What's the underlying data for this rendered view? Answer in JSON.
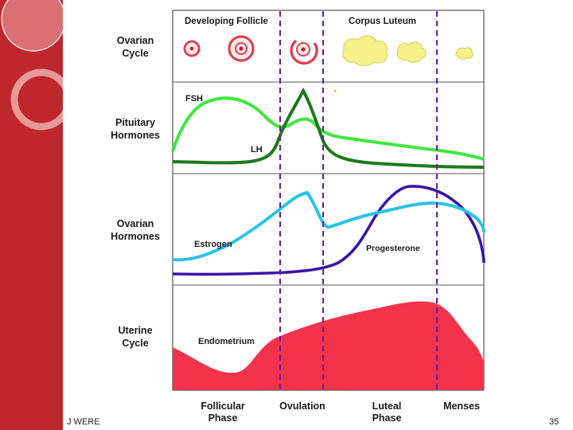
{
  "slide": {
    "author": "J WERE",
    "page_number": "35"
  },
  "rows": [
    {
      "label_line1": "Ovarian",
      "label_line2": "Cycle"
    },
    {
      "label_line1": "Pituitary",
      "label_line2": "Hormones"
    },
    {
      "label_line1": "Ovarian",
      "label_line2": "Hormones"
    },
    {
      "label_line1": "Uterine",
      "label_line2": "Cycle"
    }
  ],
  "follicle_panel": {
    "developing_follicle": "Developing Follicle",
    "corpus_luteum": "Corpus Luteum"
  },
  "curves": {
    "fsh": {
      "label": "FSH",
      "color": "#3ee83e"
    },
    "lh": {
      "label": "LH",
      "color": "#1d7a1d"
    },
    "estrogen": {
      "label": "Estrogen",
      "color": "#29c4e6"
    },
    "progesterone": {
      "label": "Progesterone",
      "color": "#3b14a8"
    },
    "endometrium": {
      "label": "Endometrium",
      "color": "#f2334a"
    }
  },
  "phases": [
    {
      "line1": "Follicular",
      "line2": "Phase"
    },
    {
      "line1": "Ovulation",
      "line2": ""
    },
    {
      "line1": "Luteal",
      "line2": "Phase"
    },
    {
      "line1": "Menses",
      "line2": ""
    }
  ],
  "colors": {
    "side_band": "#c0272d",
    "phase_divider": "#6a1b9a",
    "follicle_ring": "#e04050",
    "corpus_luteum": "#f5f08a"
  }
}
